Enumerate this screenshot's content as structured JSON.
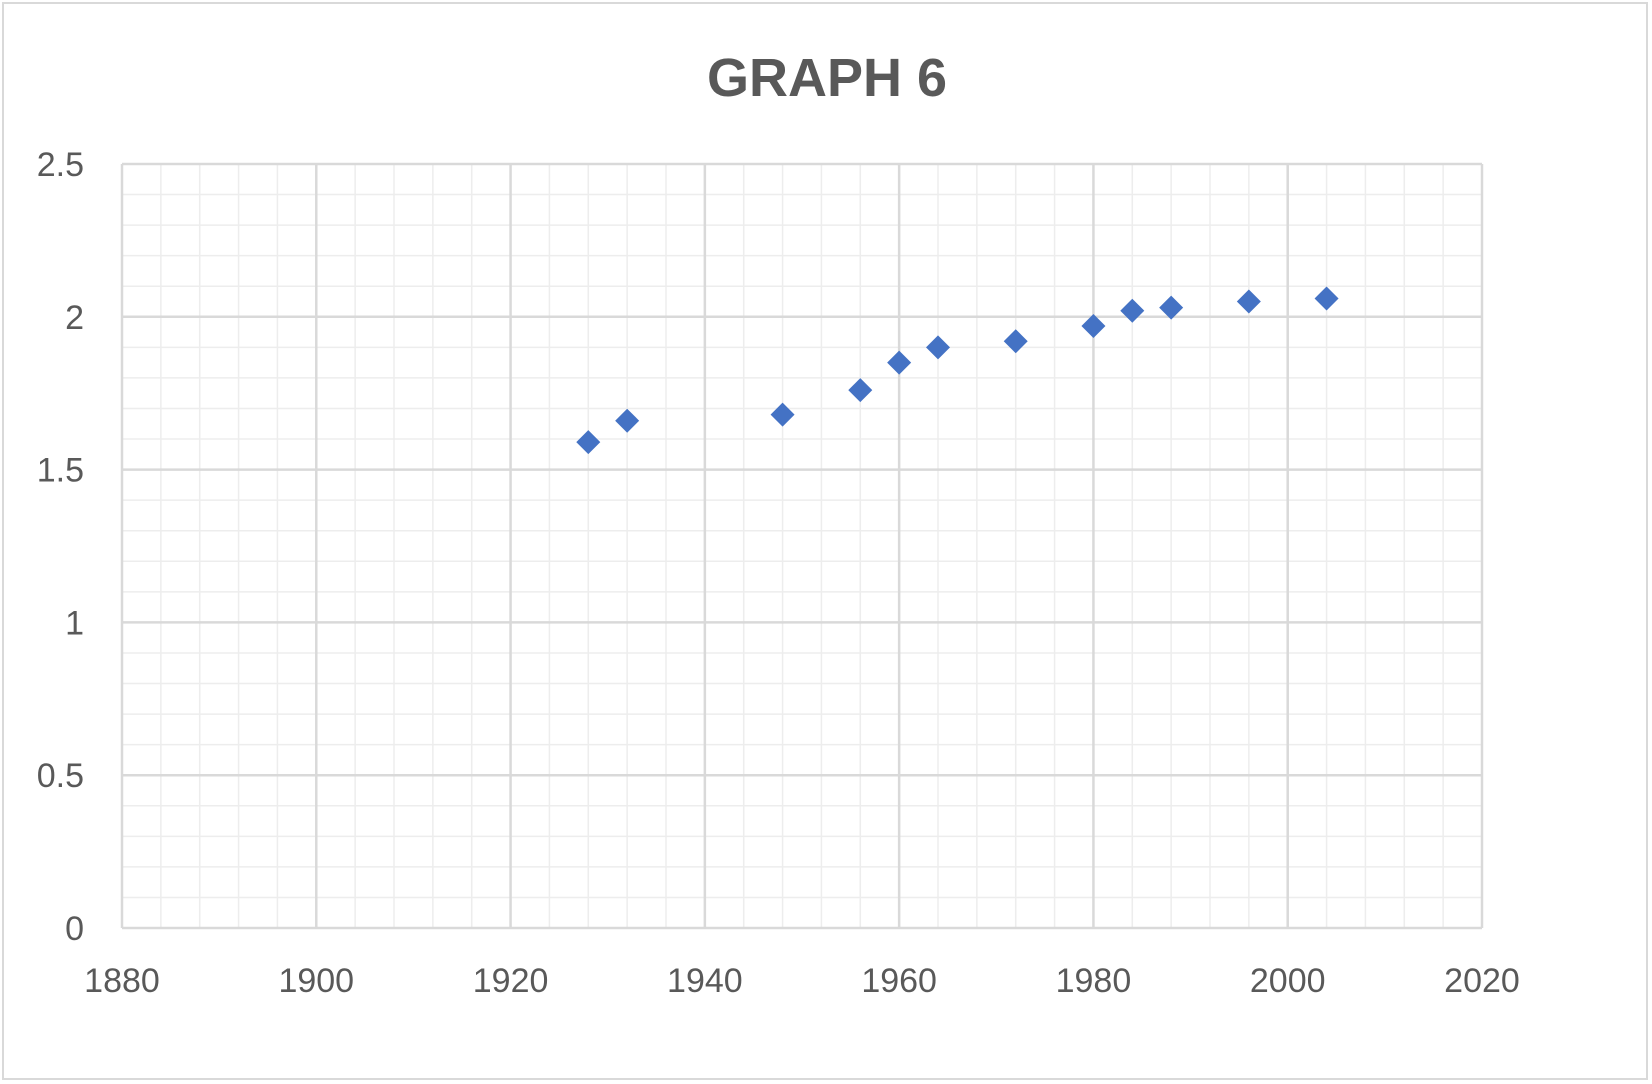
{
  "chart_data": {
    "type": "scatter",
    "title": "GRAPH 6",
    "xlabel": "",
    "ylabel": "",
    "xlim": [
      1880,
      2020
    ],
    "ylim": [
      0,
      2.5
    ],
    "x_ticks": [
      1880,
      1900,
      1920,
      1940,
      1960,
      1980,
      2000,
      2020
    ],
    "x_tick_labels": [
      "1880",
      "1900",
      "1920",
      "1940",
      "1960",
      "1980",
      "2000",
      "2020"
    ],
    "y_ticks": [
      0,
      0.5,
      1,
      1.5,
      2,
      2.5
    ],
    "y_tick_labels": [
      "0",
      "0.5",
      "1",
      "1.5",
      "2",
      "2.5"
    ],
    "x_minor_step": 4,
    "y_minor_step": 0.1,
    "grid": true,
    "legend": "none",
    "marker": "diamond",
    "series": [
      {
        "color": "#4472c4",
        "points": [
          {
            "x": 1928,
            "y": 1.59
          },
          {
            "x": 1932,
            "y": 1.66
          },
          {
            "x": 1948,
            "y": 1.68
          },
          {
            "x": 1956,
            "y": 1.76
          },
          {
            "x": 1960,
            "y": 1.85
          },
          {
            "x": 1964,
            "y": 1.9
          },
          {
            "x": 1972,
            "y": 1.92
          },
          {
            "x": 1980,
            "y": 1.97
          },
          {
            "x": 1984,
            "y": 2.02
          },
          {
            "x": 1988,
            "y": 2.03
          },
          {
            "x": 1996,
            "y": 2.05
          },
          {
            "x": 2004,
            "y": 2.06
          }
        ]
      }
    ],
    "colors": {
      "major_grid": "#d9d9d9",
      "minor_grid": "#ededed",
      "axis_text": "#595959"
    }
  }
}
